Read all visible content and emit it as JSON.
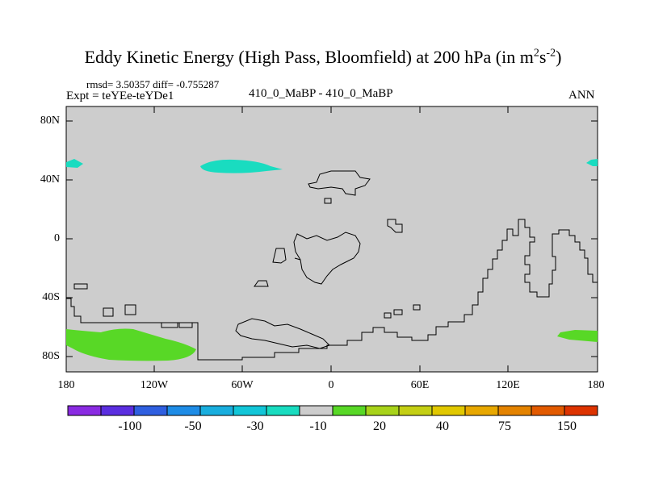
{
  "title": {
    "main": "Eddy Kinetic Energy (High Pass, Bloomfield) at 200 hPa (in m",
    "sup1": "2",
    "mid": "s",
    "sup2": "-2",
    "end": ")"
  },
  "stats": "rmsd= 3.50357 diff= -0.755287",
  "expt": "Expt = teYEe-teYDe1",
  "center_label": "410_0_MaBP - 410_0_MaBP",
  "season": "ANN",
  "lat_ticks": [
    "80N",
    "40N",
    "0",
    "40S",
    "80S"
  ],
  "lon_ticks": [
    "180",
    "120W",
    "60W",
    "0",
    "60E",
    "120E",
    "180"
  ],
  "colorbar": {
    "colors": [
      "#8a2be2",
      "#5b2ee0",
      "#2f5fe0",
      "#1e8ce6",
      "#19aede",
      "#12c6d8",
      "#19dcc0",
      "#cdcdcd",
      "#58d826",
      "#a8d31a",
      "#c4cf14",
      "#e1c800",
      "#e8a800",
      "#e48300",
      "#e25a00",
      "#dd3300"
    ],
    "labels": [
      "-100",
      "-50",
      "-30",
      "-10",
      "20",
      "40",
      "75",
      "150"
    ]
  },
  "map": {
    "background": "#cdcdcd",
    "negative_fill": "#19dcc0",
    "positive_fill": "#58d826"
  }
}
